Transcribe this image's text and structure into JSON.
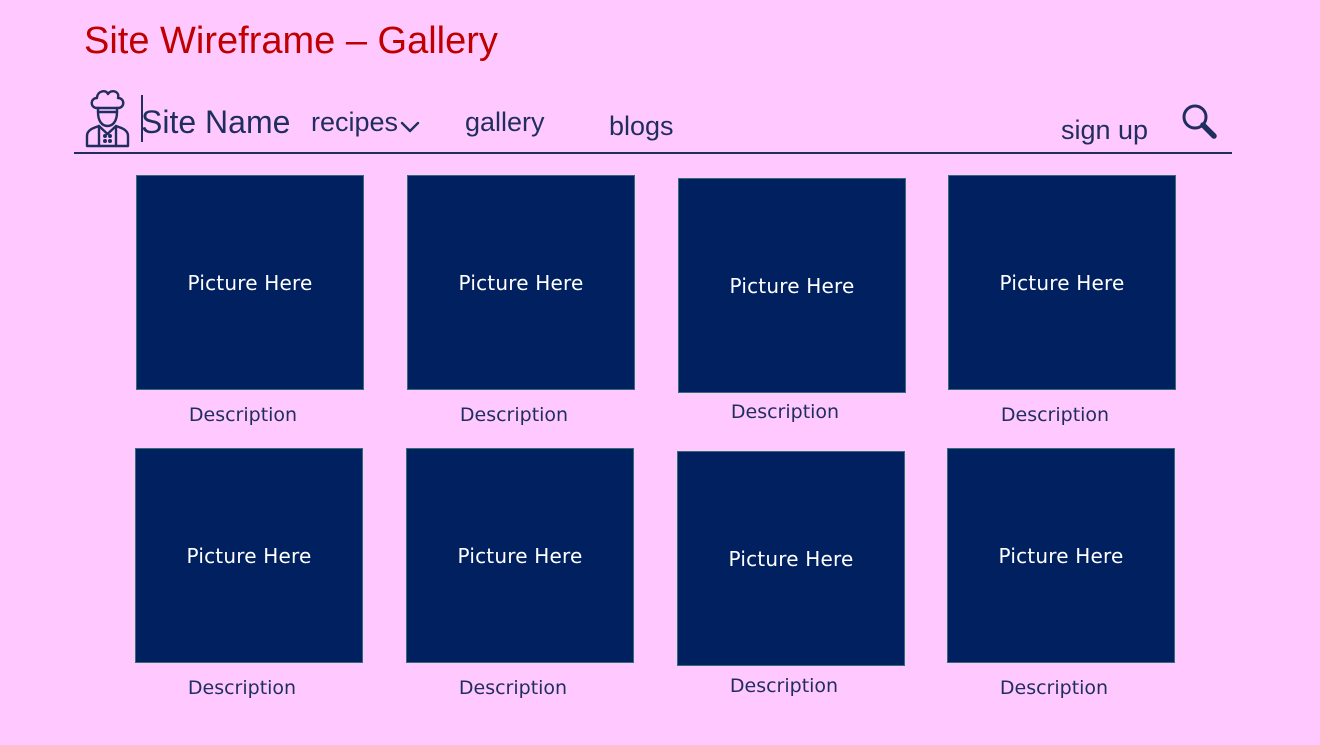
{
  "page_title": "Site Wireframe – Gallery",
  "colors": {
    "background": "#ffc9ff",
    "title": "#c00000",
    "nav_text": "#1f2e5e",
    "picture_fill": "#002060",
    "picture_text": "#ffffff"
  },
  "header": {
    "logo_icon": "chef-icon",
    "site_name": "Site Name",
    "nav": {
      "recipes": "recipes",
      "gallery": "gallery",
      "blogs": "blogs"
    },
    "sign_up": "sign up",
    "search_icon": "search-icon"
  },
  "gallery": {
    "items": [
      {
        "picture": "Picture Here",
        "description": "Description"
      },
      {
        "picture": "Picture Here",
        "description": "Description"
      },
      {
        "picture": "Picture Here",
        "description": "Description"
      },
      {
        "picture": "Picture Here",
        "description": "Description"
      },
      {
        "picture": "Picture Here",
        "description": "Description"
      },
      {
        "picture": "Picture Here",
        "description": "Description"
      },
      {
        "picture": "Picture Here",
        "description": "Description"
      },
      {
        "picture": "Picture Here",
        "description": "Description"
      }
    ]
  }
}
